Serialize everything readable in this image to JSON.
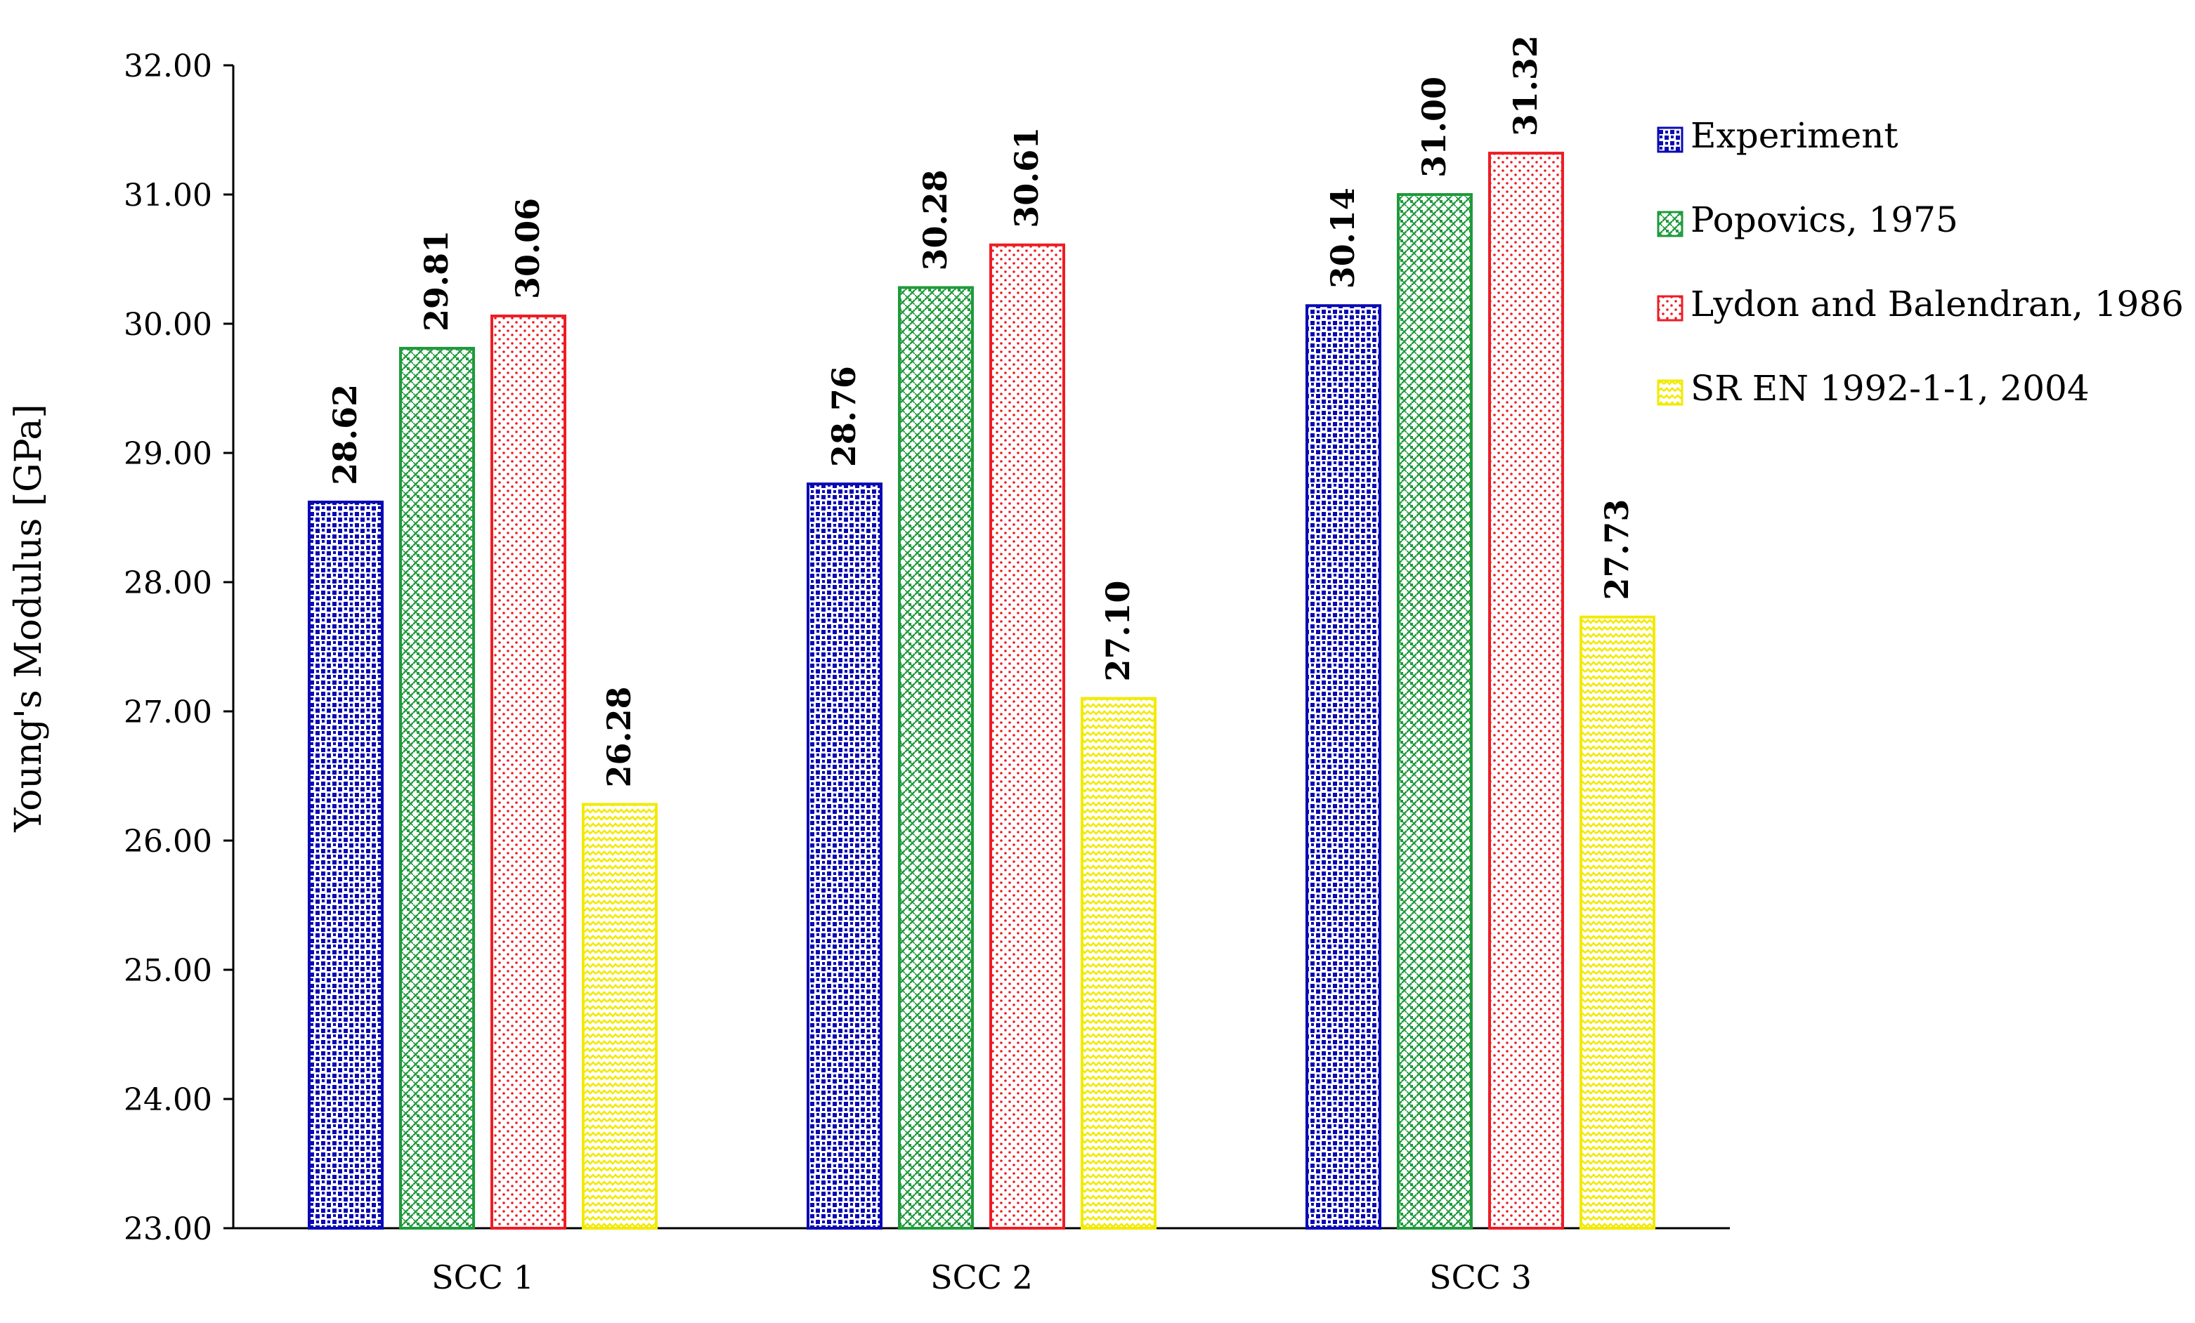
{
  "chart_data": {
    "type": "bar",
    "title": "",
    "xlabel": "",
    "ylabel": "Young's Modulus [GPa]",
    "ylim": [
      23,
      32
    ],
    "yticks": [
      23,
      24,
      25,
      26,
      27,
      28,
      29,
      30,
      31,
      32
    ],
    "ytick_decimals": 2,
    "grid": false,
    "legend_position": "right",
    "categories": [
      "SCC 1",
      "SCC 2",
      "SCC 3"
    ],
    "series": [
      {
        "name": "Experiment",
        "values": [
          28.62,
          28.76,
          30.14
        ],
        "value_labels": [
          "28.62",
          "28.76",
          "30.14"
        ],
        "color": "#0a0ab4",
        "pattern": "blue-checker"
      },
      {
        "name": "Popovics, 1975",
        "values": [
          29.81,
          30.28,
          31.0
        ],
        "value_labels": [
          "29.81",
          "30.28",
          "31.00"
        ],
        "color": "#1f9a3c",
        "pattern": "green-weave"
      },
      {
        "name": "Lydon and Balendran, 1986",
        "values": [
          30.06,
          30.61,
          31.32
        ],
        "value_labels": [
          "30.06",
          "30.61",
          "31.32"
        ],
        "color": "#ee1c24",
        "pattern": "red-dots"
      },
      {
        "name": "SR EN 1992-1-1, 2004",
        "values": [
          26.28,
          27.1,
          27.73
        ],
        "value_labels": [
          "26.28",
          "27.10",
          "27.73"
        ],
        "color": "#f2ea00",
        "pattern": "yellow-zigzag"
      }
    ]
  }
}
